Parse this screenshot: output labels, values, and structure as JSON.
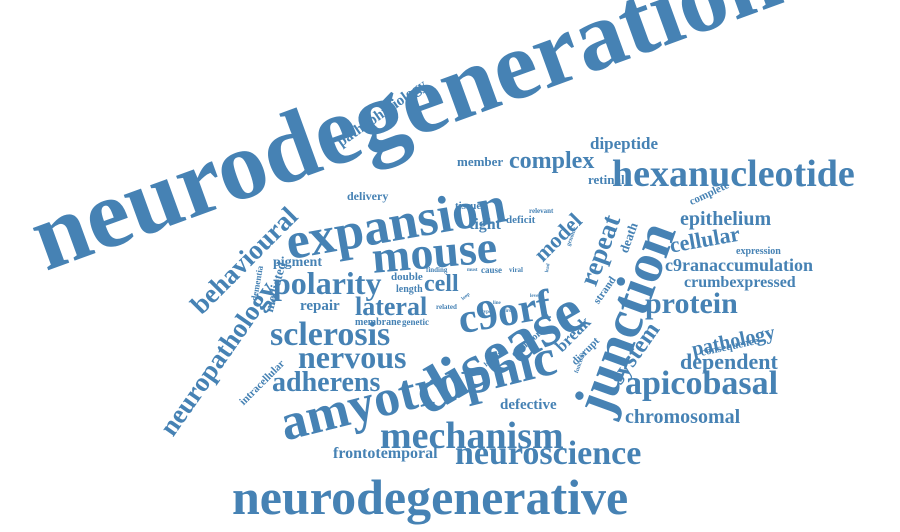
{
  "color": "#4682b4",
  "words": [
    "neurodegeneration",
    "neurodegenerative",
    "expansion",
    "mouse",
    "disease",
    "junction",
    "amyotrophic",
    "hexanucleotide",
    "mechanism",
    "neuroscience",
    "apicobasal",
    "sclerosis",
    "nervous",
    "polarity",
    "adherens",
    "c9orf",
    "behavioural",
    "neuropathology",
    "complex",
    "repeat",
    "model",
    "protein",
    "lateral",
    "cell",
    "epithelium",
    "cellular",
    "c9ranaccumulation",
    "crumbexpressed",
    "system",
    "pathology",
    "dependent",
    "chromosomal",
    "frontotemporal",
    "defective",
    "pathophysiology",
    "dipeptide",
    "member",
    "retinal",
    "delivery",
    "tissue",
    "tight",
    "deficit",
    "pigment",
    "mediated",
    "dementia",
    "double",
    "length",
    "repair",
    "membrane",
    "genetic",
    "intracellular",
    "break",
    "death",
    "strand",
    "disrupt",
    "consequence",
    "complete",
    "expression",
    "common",
    "human",
    "related",
    "finding",
    "cause",
    "viral",
    "relevant",
    "genome",
    "function",
    "must",
    "loop",
    "type",
    "virus",
    "level",
    "line",
    "lead"
  ]
}
